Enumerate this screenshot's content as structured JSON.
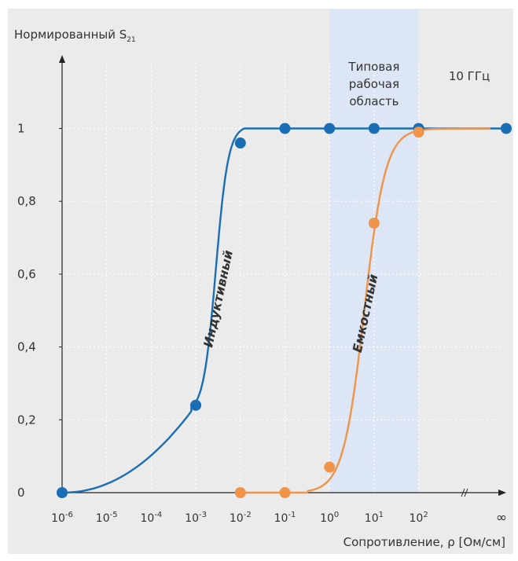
{
  "chart_data": {
    "type": "line",
    "ylabel": "Нормированный S",
    "ylabel_subscript": "21",
    "xlabel": "Сопротивление, ρ [Ом/см]",
    "y_ticks": [
      {
        "value": 0,
        "label": "0"
      },
      {
        "value": 0.2,
        "label": "0,2"
      },
      {
        "value": 0.4,
        "label": "0,4"
      },
      {
        "value": 0.6,
        "label": "0,6"
      },
      {
        "value": 0.8,
        "label": "0,8"
      },
      {
        "value": 1.0,
        "label": "1"
      }
    ],
    "x_ticks": [
      {
        "exp": -6,
        "label_base": "10",
        "label_exp": "-6"
      },
      {
        "exp": -5,
        "label_base": "10",
        "label_exp": "-5"
      },
      {
        "exp": -4,
        "label_base": "10",
        "label_exp": "-4"
      },
      {
        "exp": -3,
        "label_base": "10",
        "label_exp": "-3"
      },
      {
        "exp": -2,
        "label_base": "10",
        "label_exp": "-2"
      },
      {
        "exp": -1,
        "label_base": "10",
        "label_exp": "-1"
      },
      {
        "exp": 0,
        "label_base": "10",
        "label_exp": "0"
      },
      {
        "exp": 1,
        "label_base": "10",
        "label_exp": "1"
      },
      {
        "exp": 2,
        "label_base": "10",
        "label_exp": "2"
      }
    ],
    "x_infinity_label": "∞",
    "x_scale": "log10",
    "xlim_exp": [
      -6,
      2
    ],
    "ylim": [
      0,
      1.0
    ],
    "grid": true,
    "shaded_region": {
      "x_from_exp": 0,
      "x_to_exp": 2,
      "label_lines": [
        "Типовая",
        "рабочая",
        "область"
      ],
      "color": "#dde6f4"
    },
    "frequency_label": "10 ГГц",
    "series": [
      {
        "name": "Индуктивный",
        "color": "#1a6eb5",
        "points": [
          {
            "exp": -6,
            "y": 0.0
          },
          {
            "exp": -3,
            "y": 0.24
          },
          {
            "exp": -2,
            "y": 0.96
          },
          {
            "exp": -1,
            "y": 1.0
          },
          {
            "exp": 0,
            "y": 1.0
          },
          {
            "exp": 1,
            "y": 1.0
          },
          {
            "exp": 2,
            "y": 1.0
          },
          {
            "exp": "inf",
            "y": 1.0
          }
        ]
      },
      {
        "name": "Емкостный",
        "color": "#f0944a",
        "points": [
          {
            "exp": -2,
            "y": 0.0
          },
          {
            "exp": -1,
            "y": 0.0
          },
          {
            "exp": 0,
            "y": 0.07
          },
          {
            "exp": 1,
            "y": 0.74
          },
          {
            "exp": 2,
            "y": 0.99
          }
        ]
      }
    ]
  }
}
